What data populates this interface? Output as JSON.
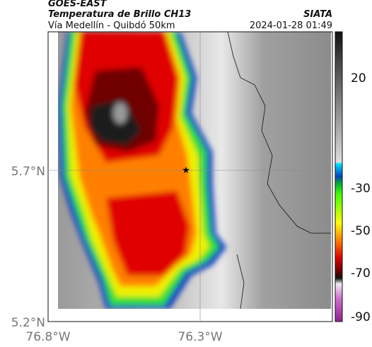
{
  "header": {
    "source": "GOES-EAST",
    "title": "Temperatura de Brillo CH13",
    "subtitle": "Vía Medellín - Quibdó 50km",
    "brand": "SIATA",
    "timestamp": "2024-01-28 01:49"
  },
  "map": {
    "lat_labels": [
      "5.7°N",
      "5.2°N"
    ],
    "lon_labels": [
      "76.8°W",
      "76.3°W"
    ]
  },
  "colorbar": {
    "tick_labels": [
      "20",
      "-30",
      "-50",
      "-70",
      "-90"
    ]
  }
}
